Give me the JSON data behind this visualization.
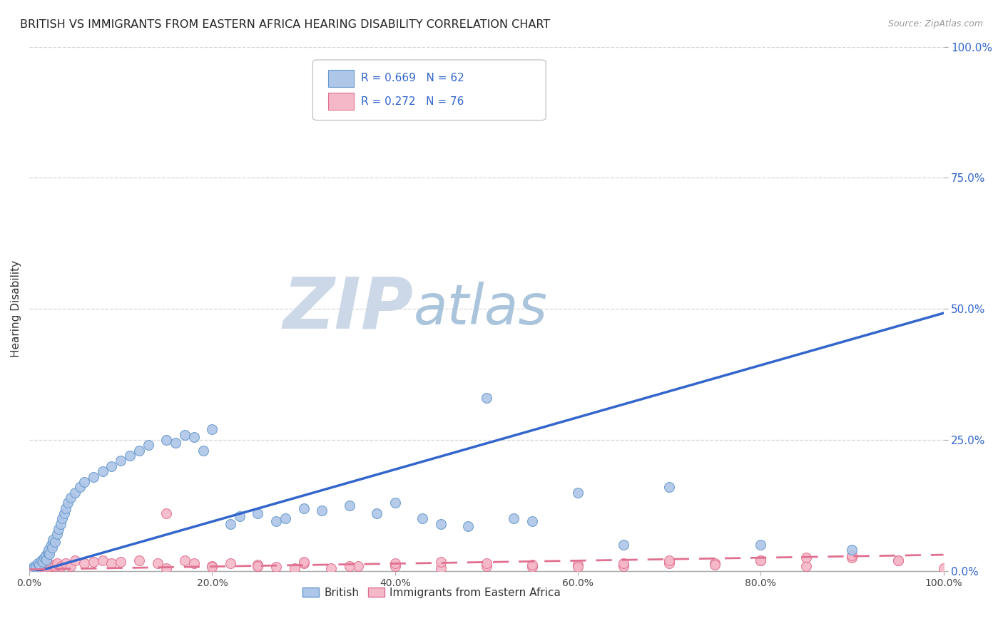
{
  "title": "BRITISH VS IMMIGRANTS FROM EASTERN AFRICA HEARING DISABILITY CORRELATION CHART",
  "source": "Source: ZipAtlas.com",
  "ylabel": "Hearing Disability",
  "xlim": [
    0.0,
    100.0
  ],
  "ylim": [
    0.0,
    100.0
  ],
  "british_color": "#aec6e8",
  "british_edge_color": "#6699cc",
  "immigrant_color": "#f5b8c8",
  "immigrant_edge_color": "#e07090",
  "blue_line_color": "#3366cc",
  "pink_line_color": "#e07090",
  "legend_text_color": "#3366cc",
  "legend_r_british": "R = 0.669",
  "legend_n_british": "N = 62",
  "legend_r_immigrant": "R = 0.272",
  "legend_n_immigrant": "N = 76",
  "legend_label_british": "British",
  "legend_label_immigrant": "Immigrants from Eastern Africa",
  "watermark_zip": "ZIP",
  "watermark_atlas": "atlas",
  "watermark_color": "#ccd8e8",
  "title_fontsize": 11.5,
  "axis_tick_color": "#3366cc",
  "blue_line_slope": 0.497,
  "blue_line_intercept": -0.5,
  "pink_line_slope": 0.028,
  "pink_line_intercept": 0.3,
  "british_x": [
    0.3,
    0.5,
    0.7,
    0.9,
    1.1,
    1.3,
    1.5,
    1.6,
    1.8,
    1.9,
    2.0,
    2.1,
    2.2,
    2.4,
    2.5,
    2.6,
    2.8,
    3.0,
    3.2,
    3.4,
    3.6,
    3.8,
    4.0,
    4.2,
    4.5,
    5.0,
    5.5,
    6.0,
    7.0,
    8.0,
    9.0,
    10.0,
    11.0,
    12.0,
    13.0,
    15.0,
    16.0,
    17.0,
    18.0,
    19.0,
    20.0,
    22.0,
    23.0,
    25.0,
    27.0,
    28.0,
    30.0,
    32.0,
    35.0,
    38.0,
    40.0,
    43.0,
    45.0,
    48.0,
    50.0,
    53.0,
    55.0,
    60.0,
    65.0,
    70.0,
    80.0,
    90.0
  ],
  "british_y": [
    0.5,
    1.0,
    0.8,
    1.5,
    1.2,
    2.0,
    1.8,
    2.5,
    3.0,
    2.2,
    3.5,
    4.0,
    3.2,
    5.0,
    4.5,
    6.0,
    5.5,
    7.0,
    8.0,
    9.0,
    10.0,
    11.0,
    12.0,
    13.0,
    14.0,
    15.0,
    16.0,
    17.0,
    18.0,
    19.0,
    20.0,
    21.0,
    22.0,
    23.0,
    24.0,
    25.0,
    24.5,
    26.0,
    25.5,
    23.0,
    27.0,
    9.0,
    10.5,
    11.0,
    9.5,
    10.0,
    12.0,
    11.5,
    12.5,
    11.0,
    13.0,
    10.0,
    9.0,
    8.5,
    33.0,
    10.0,
    9.5,
    15.0,
    5.0,
    16.0,
    5.0,
    4.0
  ],
  "immigrant_x": [
    0.2,
    0.4,
    0.5,
    0.6,
    0.7,
    0.8,
    0.9,
    1.0,
    1.1,
    1.2,
    1.3,
    1.4,
    1.5,
    1.6,
    1.7,
    1.8,
    1.9,
    2.0,
    2.2,
    2.4,
    2.6,
    2.8,
    3.0,
    3.5,
    4.0,
    4.5,
    5.0,
    6.0,
    7.0,
    8.0,
    9.0,
    10.0,
    12.0,
    14.0,
    15.0,
    17.0,
    18.0,
    20.0,
    22.0,
    25.0,
    27.0,
    29.0,
    30.0,
    33.0,
    36.0,
    40.0,
    45.0,
    50.0,
    55.0,
    60.0,
    65.0,
    70.0,
    75.0,
    80.0,
    85.0,
    90.0,
    95.0,
    100.0,
    25.0,
    30.0,
    35.0,
    40.0,
    45.0,
    50.0,
    55.0,
    60.0,
    65.0,
    70.0,
    75.0,
    80.0,
    85.0,
    90.0,
    95.0,
    15.0,
    20.0,
    25.0
  ],
  "immigrant_y": [
    0.2,
    0.3,
    0.5,
    0.4,
    0.6,
    0.8,
    0.5,
    1.0,
    0.7,
    0.9,
    0.6,
    1.1,
    0.8,
    1.2,
    0.9,
    1.0,
    0.7,
    1.5,
    0.8,
    1.0,
    1.2,
    0.9,
    1.5,
    1.0,
    1.5,
    1.0,
    2.0,
    1.5,
    1.8,
    2.0,
    1.5,
    1.8,
    2.0,
    1.5,
    11.0,
    2.0,
    1.5,
    1.0,
    1.5,
    1.0,
    0.8,
    0.5,
    1.5,
    0.5,
    1.0,
    1.0,
    0.5,
    1.0,
    0.8,
    1.2,
    1.0,
    1.5,
    1.5,
    2.0,
    1.0,
    2.5,
    2.0,
    0.5,
    1.2,
    1.8,
    1.0,
    1.5,
    1.8,
    1.5,
    1.2,
    0.8,
    1.5,
    2.0,
    1.2,
    2.0,
    2.5,
    3.0,
    2.0,
    0.5,
    0.8,
    1.0
  ]
}
